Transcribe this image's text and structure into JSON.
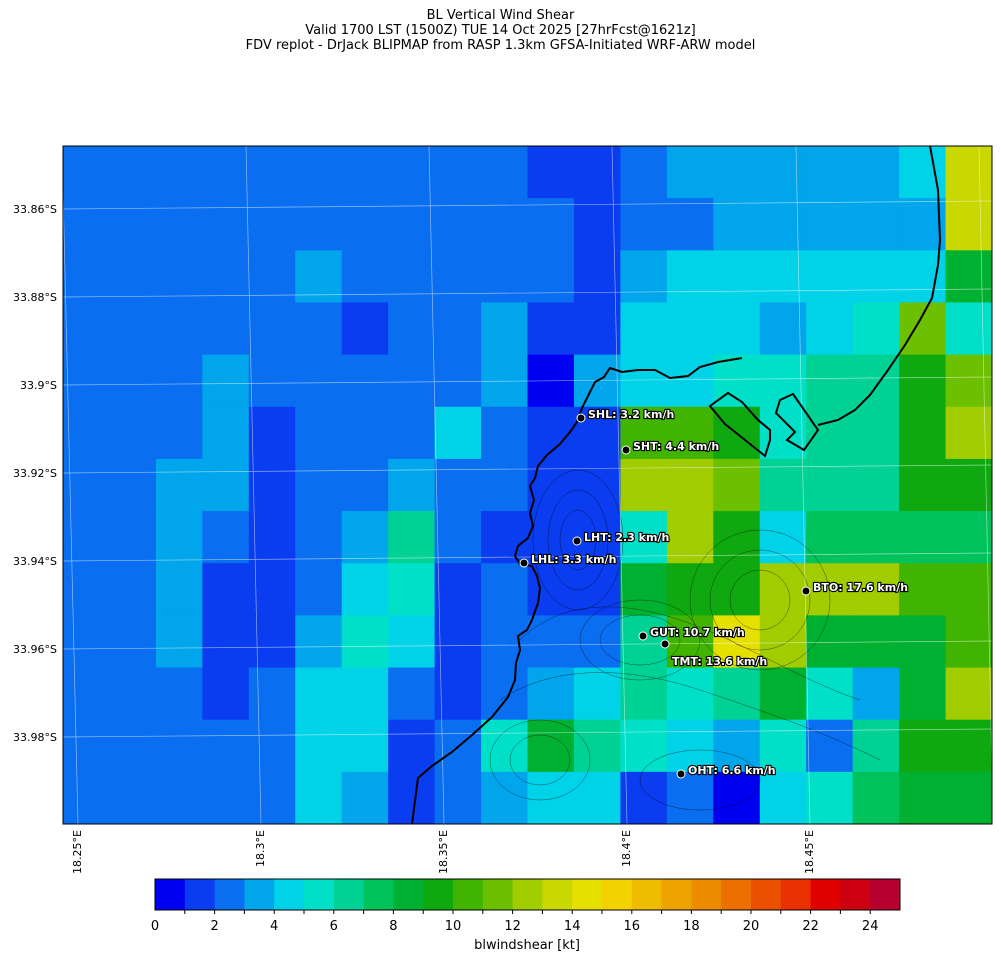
{
  "title": {
    "line1": "BL Vertical Wind Shear",
    "line2": "Valid 1700 LST (1500Z) TUE 14 Oct 2025 [27hrFcst@1621z]",
    "line3": "FDV replot - DrJack BLIPMAP from RASP 1.3km GFSA-Initiated WRF-ARW model"
  },
  "map": {
    "lat_labels": [
      "33.86°S",
      "33.88°S",
      "33.9°S",
      "33.92°S",
      "33.94°S",
      "33.96°S",
      "33.98°S"
    ],
    "lon_labels": [
      "18.25°E",
      "18.3°E",
      "18.35°E",
      "18.4°E",
      "18.45°E"
    ],
    "cell_levels": [
      [
        2,
        2,
        2,
        2,
        2,
        2,
        2,
        2,
        2,
        2,
        1,
        1,
        2,
        3,
        3,
        3,
        3,
        3,
        4,
        13
      ],
      [
        2,
        2,
        2,
        2,
        2,
        2,
        2,
        2,
        2,
        2,
        2,
        1,
        2,
        2,
        3,
        3,
        3,
        3,
        3,
        13
      ],
      [
        2,
        2,
        2,
        2,
        2,
        3,
        2,
        2,
        2,
        2,
        2,
        1,
        3,
        4,
        4,
        4,
        4,
        4,
        4,
        8
      ],
      [
        2,
        2,
        2,
        2,
        2,
        2,
        1,
        2,
        2,
        3,
        1,
        1,
        4,
        4,
        4,
        3,
        4,
        5,
        11,
        5
      ],
      [
        2,
        2,
        2,
        3,
        2,
        2,
        2,
        2,
        2,
        3,
        0,
        3,
        4,
        4,
        5,
        5,
        6,
        6,
        9,
        11
      ],
      [
        2,
        2,
        2,
        3,
        1,
        2,
        2,
        2,
        4,
        2,
        1,
        1,
        10,
        10,
        9,
        5,
        6,
        6,
        9,
        12
      ],
      [
        2,
        2,
        3,
        3,
        1,
        2,
        2,
        3,
        2,
        2,
        1,
        1,
        12,
        12,
        11,
        6,
        6,
        6,
        9,
        9
      ],
      [
        2,
        2,
        3,
        2,
        1,
        2,
        3,
        6,
        2,
        1,
        1,
        1,
        5,
        12,
        9,
        4,
        7,
        7,
        7,
        7
      ],
      [
        2,
        2,
        3,
        1,
        1,
        2,
        4,
        5,
        1,
        2,
        1,
        1,
        8,
        9,
        9,
        12,
        12,
        12,
        10,
        10
      ],
      [
        2,
        2,
        3,
        1,
        1,
        3,
        5,
        4,
        1,
        2,
        2,
        2,
        6,
        10,
        14,
        12,
        8,
        8,
        8,
        10
      ],
      [
        2,
        2,
        2,
        1,
        2,
        4,
        4,
        2,
        1,
        2,
        3,
        4,
        6,
        5,
        6,
        8,
        5,
        3,
        8,
        12
      ],
      [
        2,
        2,
        2,
        2,
        2,
        4,
        4,
        1,
        2,
        5,
        8,
        6,
        5,
        4,
        3,
        5,
        2,
        6,
        9,
        9
      ],
      [
        2,
        2,
        2,
        2,
        2,
        4,
        3,
        1,
        2,
        3,
        4,
        4,
        1,
        2,
        0,
        4,
        5,
        7,
        8,
        8
      ]
    ]
  },
  "stations": [
    {
      "label": "SHL: 3.2 km/h"
    },
    {
      "label": "SHT: 4.4 km/h"
    },
    {
      "label": "LHT: 2.3 km/h"
    },
    {
      "label": "LHL: 3.3 km/h"
    },
    {
      "label": "BTO: 17.6 km/h"
    },
    {
      "label": "GUT: 10.7 km/h"
    },
    {
      "label": "TMT: 13.6 km/h"
    },
    {
      "label": "OHT: 6.6 km/h"
    }
  ],
  "colorbar": {
    "title": "blwindshear [kt]",
    "ticks": [
      "0",
      "2",
      "4",
      "6",
      "8",
      "10",
      "12",
      "14",
      "16",
      "18",
      "20",
      "22",
      "24"
    ],
    "colors": [
      "#0000f0",
      "#0a3cf0",
      "#0a6ef0",
      "#00a5ec",
      "#00d2e8",
      "#00e0c8",
      "#00d296",
      "#00c25a",
      "#00b030",
      "#10a810",
      "#40b400",
      "#6cc000",
      "#a0cc00",
      "#c8d800",
      "#e6e000",
      "#f2d200",
      "#f0bc00",
      "#eea400",
      "#ee8c00",
      "#ec7000",
      "#ea5000",
      "#e83000",
      "#e00000",
      "#cc0010",
      "#b80030"
    ]
  }
}
